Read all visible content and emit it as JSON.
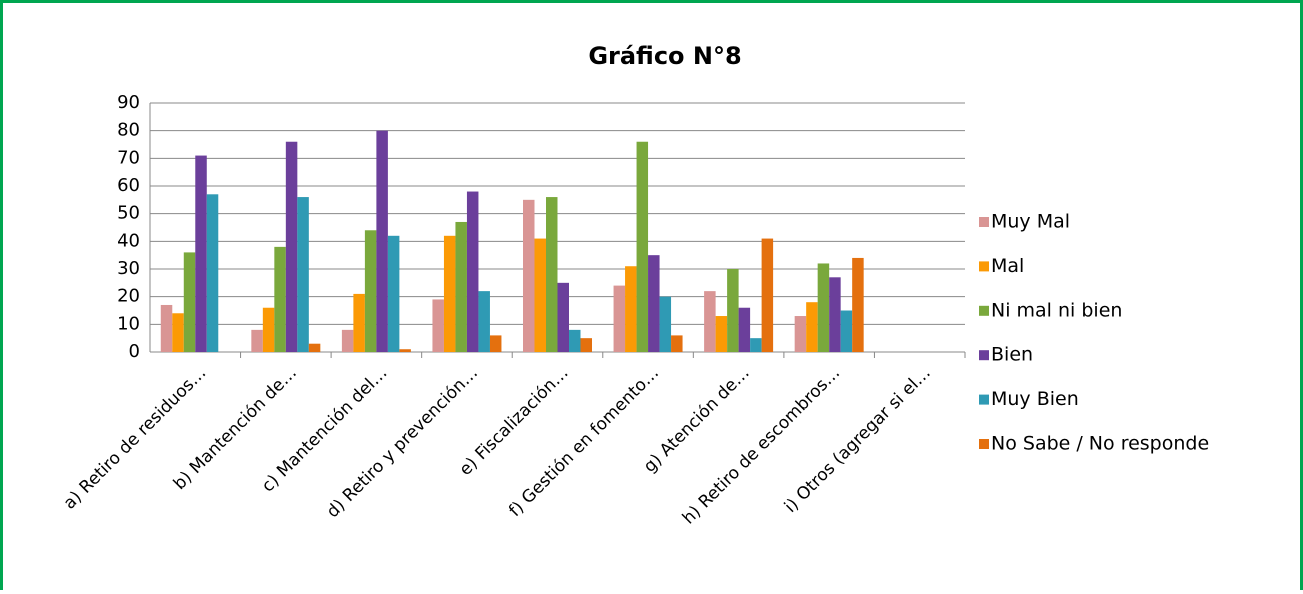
{
  "chart_data": {
    "type": "bar",
    "title": "Gráfico N°8",
    "categories": [
      "a) Retiro de residuos…",
      "b) Mantención de…",
      "c) Mantención del…",
      "d) Retiro y prevención…",
      "e) Fiscalización…",
      "f) Gestión en fomento…",
      "g) Atención de…",
      "h) Retiro de escombros…",
      "i) Otros (agregar si el…"
    ],
    "series": [
      {
        "name": "Muy Mal",
        "color": "#d99594",
        "values": [
          17,
          8,
          8,
          19,
          55,
          24,
          22,
          13,
          0
        ]
      },
      {
        "name": "Mal",
        "color": "#fb9a05",
        "values": [
          14,
          16,
          21,
          42,
          41,
          31,
          13,
          18,
          0
        ]
      },
      {
        "name": "Ni mal ni bien",
        "color": "#7aa83c",
        "values": [
          36,
          38,
          44,
          47,
          56,
          76,
          30,
          32,
          0
        ]
      },
      {
        "name": "Bien",
        "color": "#6b3f9b",
        "values": [
          71,
          76,
          80,
          58,
          25,
          35,
          16,
          27,
          0
        ]
      },
      {
        "name": "Muy Bien",
        "color": "#2f9ab4",
        "values": [
          57,
          56,
          42,
          22,
          8,
          20,
          5,
          15,
          0
        ]
      },
      {
        "name": "No Sabe / No responde",
        "color": "#e4700e",
        "values": [
          0,
          3,
          1,
          6,
          5,
          6,
          41,
          34,
          0
        ]
      }
    ],
    "ylim": [
      0,
      90
    ],
    "yticks": [
      0,
      10,
      20,
      30,
      40,
      50,
      60,
      70,
      80,
      90
    ],
    "grid": true,
    "legend": "right"
  }
}
